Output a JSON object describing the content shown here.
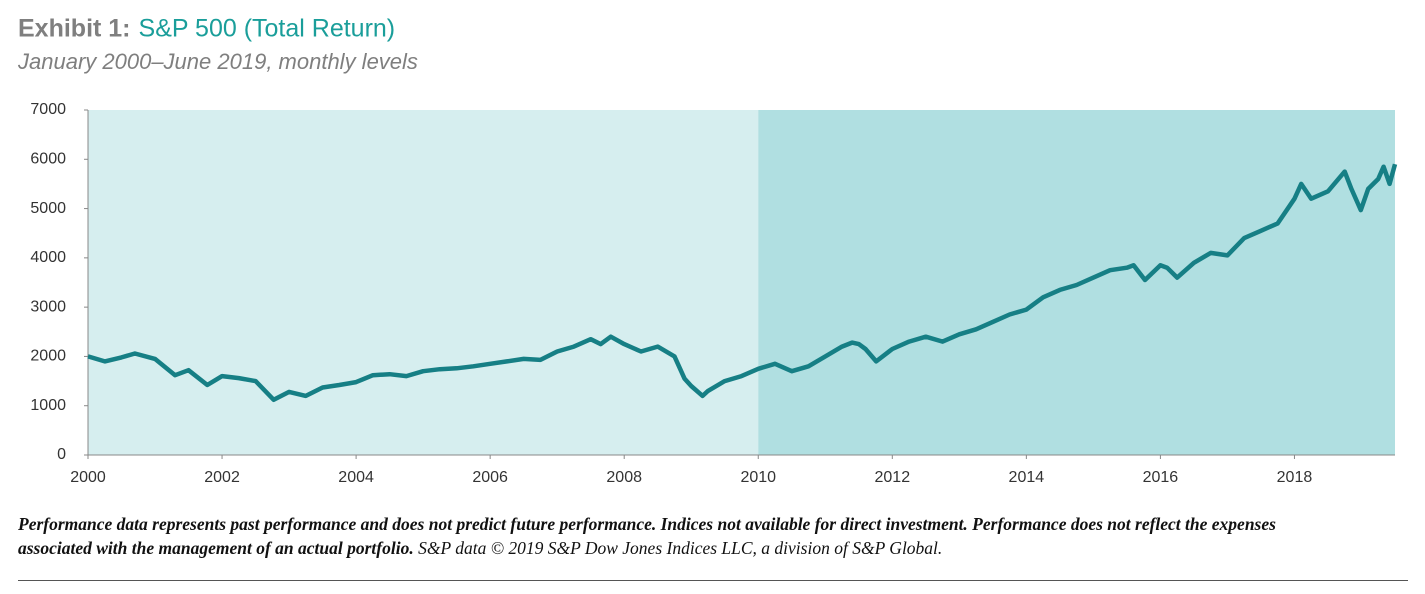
{
  "chart_data": {
    "type": "line",
    "title_prefix": "Exhibit 1:",
    "title": "S&P 500 (Total Return)",
    "subtitle": "January 2000–June 2019, monthly levels",
    "footnote_bold": "Performance data represents past performance and does not predict future performance. Indices not available for direct investment. Performance does not reflect the expenses associated with the management of an actual portfolio.",
    "footnote": "S&P data © 2019 S&P Dow Jones Indices LLC, a division of S&P Global.",
    "xlim": [
      2000,
      2019.5
    ],
    "xticks": [
      2000,
      2002,
      2004,
      2006,
      2008,
      2010,
      2012,
      2014,
      2016,
      2018
    ],
    "ylim": [
      0,
      7000
    ],
    "yticks": [
      0,
      1000,
      2000,
      3000,
      4000,
      5000,
      6000,
      7000
    ],
    "bands": [
      {
        "start": 2000,
        "end": 2010,
        "color": "#d6eeef"
      },
      {
        "start": 2010,
        "end": 2019.5,
        "color": "#b0dfe1"
      }
    ],
    "series": [
      {
        "name": "S&P 500 (Total Return)",
        "color": "#167f85",
        "x": [
          2000,
          2000.25,
          2000.5,
          2000.7,
          2001,
          2001.3,
          2001.5,
          2001.78,
          2002,
          2002.25,
          2002.5,
          2002.77,
          2003,
          2003.25,
          2003.5,
          2003.75,
          2004,
          2004.25,
          2004.5,
          2004.75,
          2005,
          2005.25,
          2005.5,
          2005.75,
          2006,
          2006.25,
          2006.5,
          2006.75,
          2007,
          2007.25,
          2007.5,
          2007.65,
          2007.8,
          2008,
          2008.25,
          2008.5,
          2008.75,
          2008.9,
          2009,
          2009.17,
          2009.25,
          2009.5,
          2009.75,
          2010,
          2010.25,
          2010.5,
          2010.75,
          2011,
          2011.25,
          2011.4,
          2011.5,
          2011.6,
          2011.76,
          2012,
          2012.25,
          2012.5,
          2012.75,
          2013,
          2013.25,
          2013.5,
          2013.75,
          2014,
          2014.25,
          2014.5,
          2014.75,
          2015,
          2015.25,
          2015.5,
          2015.6,
          2015.77,
          2016,
          2016.1,
          2016.25,
          2016.5,
          2016.75,
          2017,
          2017.25,
          2017.5,
          2017.75,
          2018,
          2018.1,
          2018.25,
          2018.5,
          2018.75,
          2018.85,
          2018.99,
          2019.1,
          2019.25,
          2019.33,
          2019.42,
          2019.5
        ],
        "values": [
          2000,
          1900,
          1980,
          2060,
          1950,
          1620,
          1720,
          1420,
          1600,
          1560,
          1500,
          1120,
          1280,
          1200,
          1370,
          1420,
          1480,
          1620,
          1640,
          1600,
          1700,
          1740,
          1760,
          1800,
          1850,
          1900,
          1950,
          1930,
          2100,
          2200,
          2350,
          2250,
          2400,
          2250,
          2100,
          2200,
          2000,
          1550,
          1400,
          1200,
          1300,
          1500,
          1600,
          1750,
          1850,
          1700,
          1800,
          2000,
          2200,
          2280,
          2250,
          2150,
          1900,
          2150,
          2300,
          2400,
          2300,
          2450,
          2550,
          2700,
          2850,
          2950,
          3200,
          3350,
          3450,
          3600,
          3750,
          3800,
          3850,
          3550,
          3850,
          3800,
          3600,
          3900,
          4100,
          4050,
          4400,
          4550,
          4700,
          5200,
          5500,
          5200,
          5350,
          5750,
          5400,
          4970,
          5400,
          5600,
          5850,
          5500,
          5900
        ]
      }
    ]
  }
}
